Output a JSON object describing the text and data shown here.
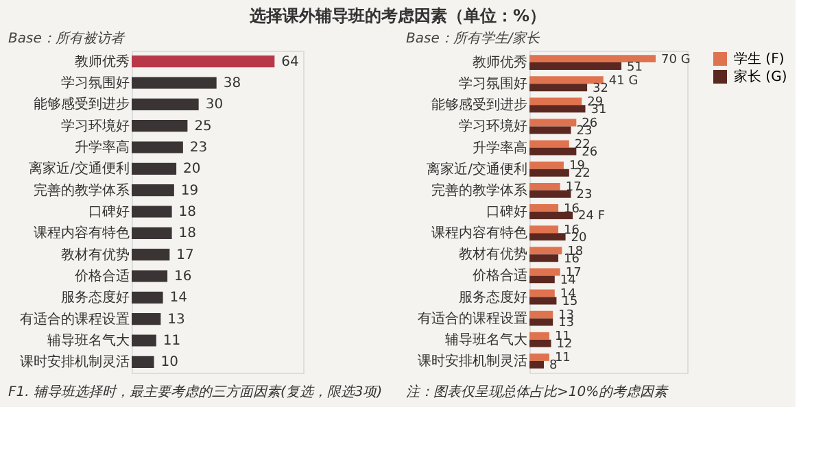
{
  "chart_data": [
    {
      "type": "bar",
      "orientation": "horizontal",
      "title": "选择课外辅导班的考虑因素（单位：%）",
      "categories": [
        "教师优秀",
        "学习氛围好",
        "能够感受到进步",
        "学习环境好",
        "升学率高",
        "离家近/交通便利",
        "完善的教学体系",
        "口碑好",
        "课程内容有特色",
        "教材有优势",
        "价格合适",
        "服务态度好",
        "有适合的课程设置",
        "辅导班名气大",
        "课时安排机制灵活"
      ],
      "values": [
        64,
        38,
        30,
        25,
        23,
        20,
        19,
        18,
        18,
        17,
        16,
        14,
        13,
        11,
        10
      ],
      "colors": [
        "#b8384a",
        "#3b3435",
        "#3b3435",
        "#3b3435",
        "#3b3435",
        "#3b3435",
        "#3b3435",
        "#3b3435",
        "#3b3435",
        "#3b3435",
        "#3b3435",
        "#3b3435",
        "#3b3435",
        "#3b3435",
        "#3b3435"
      ],
      "data_labels": true,
      "tick_labels": "y",
      "annotations": [
        "Base：所有被访者",
        "F1. 辅导班选择时，最主要考虑的三方面因素(复选，限选3项)"
      ]
    },
    {
      "type": "bar",
      "orientation": "horizontal",
      "categories": [
        "教师优秀",
        "学习氛围好",
        "能够感受到进步",
        "学习环境好",
        "升学率高",
        "离家近/交通便利",
        "完善的教学体系",
        "口碑好",
        "课程内容有特色",
        "教材有优势",
        "价格合适",
        "服务态度好",
        "有适合的课程设置",
        "辅导班名气大",
        "课时安排机制灵活"
      ],
      "series": [
        {
          "name": "学生 (F)",
          "color": "#e0734f",
          "values": [
            70,
            41,
            29,
            26,
            22,
            19,
            17,
            16,
            16,
            18,
            17,
            14,
            13,
            11,
            11
          ],
          "value_labels": [
            "70 G",
            "41 G",
            "29",
            "26",
            "22",
            "19",
            "17",
            "16",
            "16",
            "18",
            "17",
            "14",
            "13",
            "11",
            "11"
          ]
        },
        {
          "name": "家长 (G)",
          "color": "#5a2820",
          "values": [
            51,
            32,
            31,
            23,
            26,
            22,
            23,
            24,
            20,
            16,
            14,
            15,
            13,
            12,
            8
          ],
          "value_labels": [
            "51",
            "32",
            "31",
            "23",
            "26",
            "22",
            "23",
            "24 F",
            "20",
            "16",
            "14",
            "15",
            "13",
            "12",
            "8"
          ]
        }
      ],
      "legend": "right",
      "tick_labels": "y",
      "annotations": [
        "Base：所有学生/家长",
        "注：图表仅呈现总体占比>10%的考虑因素"
      ]
    }
  ]
}
